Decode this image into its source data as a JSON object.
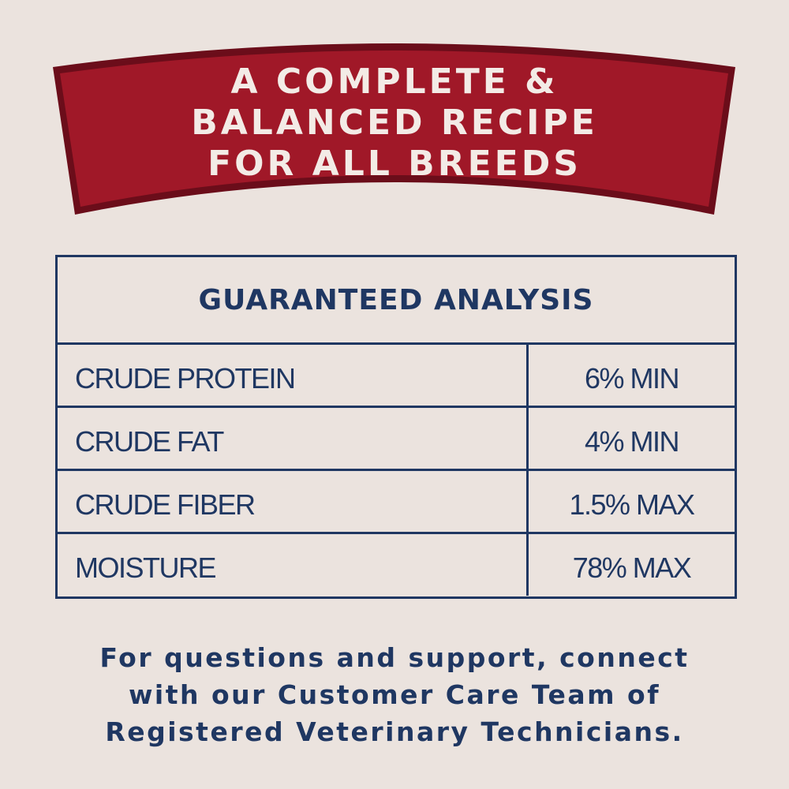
{
  "banner": {
    "lines": [
      "A COMPLETE &",
      "BALANCED RECIPE",
      "FOR ALL BREEDS"
    ],
    "fill_color": "#a01828",
    "border_color": "#6b0d1a"
  },
  "analysis": {
    "title": "GUARANTEED ANALYSIS",
    "rows": [
      {
        "label": "CRUDE PROTEIN",
        "value": "6% MIN"
      },
      {
        "label": "CRUDE FAT",
        "value": "4% MIN"
      },
      {
        "label": "CRUDE FIBER",
        "value": "1.5% MAX"
      },
      {
        "label": "MOISTURE",
        "value": "78% MAX"
      }
    ],
    "color": "#1f3762"
  },
  "footer": {
    "lines": [
      "For questions and support, connect",
      "with our Customer Care Team of",
      "Registered Veterinary Technicians."
    ]
  }
}
